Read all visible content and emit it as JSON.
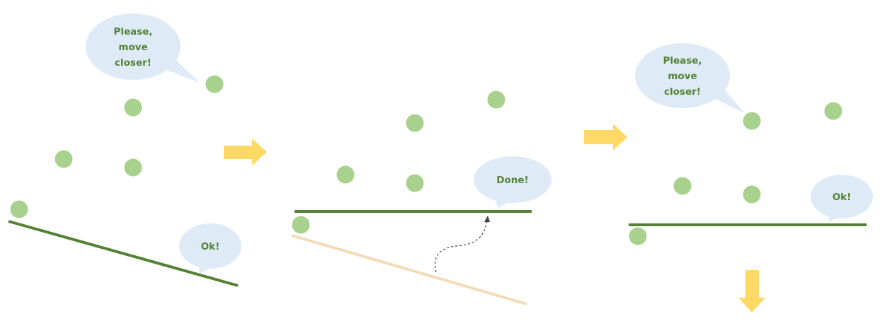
{
  "colors": {
    "point": "#a9d18e",
    "line": "#538135",
    "old_line": "#f1dcb7",
    "bubble": "#deebf7",
    "bubble_text": "#548235",
    "arrow": "#ffd966",
    "curve": "#404040"
  },
  "panels": [
    {
      "bubbles": {
        "request": [
          "Please,",
          "move",
          "closer!"
        ],
        "reply": [
          "Ok!"
        ]
      }
    },
    {
      "bubbles": {
        "reply": [
          "Done!"
        ]
      }
    },
    {
      "bubbles": {
        "request": [
          "Please,",
          "move",
          "closer!"
        ],
        "reply": [
          "Ok!"
        ]
      }
    }
  ],
  "icons": {
    "transition_1": "arrow-right-icon",
    "transition_2": "arrow-right-icon",
    "continuation": "arrow-down-icon",
    "movement": "curved-arrow-icon"
  }
}
